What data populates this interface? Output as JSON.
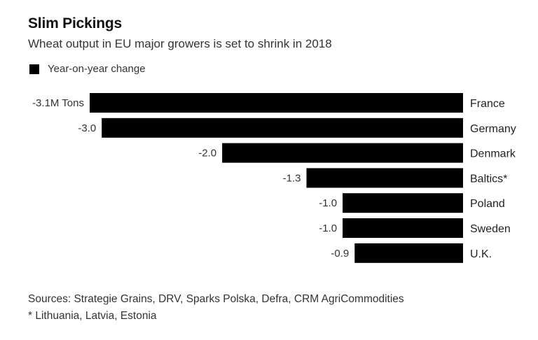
{
  "chart_data": {
    "type": "bar",
    "orientation": "horizontal",
    "title": "Slim Pickings",
    "subtitle": "Wheat output in EU major growers is set to shrink in 2018",
    "legend": [
      {
        "name": "Year-on-year change",
        "color": "#000000"
      }
    ],
    "legend_position": "top-left",
    "unit": "M Tons",
    "categories": [
      "France",
      "Germany",
      "Denmark",
      "Baltics*",
      "Poland",
      "Sweden",
      "U.K."
    ],
    "values": [
      -3.1,
      -3.0,
      -2.0,
      -1.3,
      -1.0,
      -1.0,
      -0.9
    ],
    "data_labels": [
      "-3.1M Tons",
      "-3.0",
      "-2.0",
      "-1.3",
      "-1.0",
      "-1.0",
      "-0.9"
    ],
    "xlim": [
      -3.1,
      0
    ],
    "grid": false,
    "bar_color": "#000000",
    "xlabel": "",
    "ylabel": ""
  },
  "footnotes": {
    "sources": "Sources: Strategie Grains, DRV, Sparks Polska, Defra, CRM AgriCommodities",
    "note": "* Lithuania, Latvia, Estonia"
  }
}
